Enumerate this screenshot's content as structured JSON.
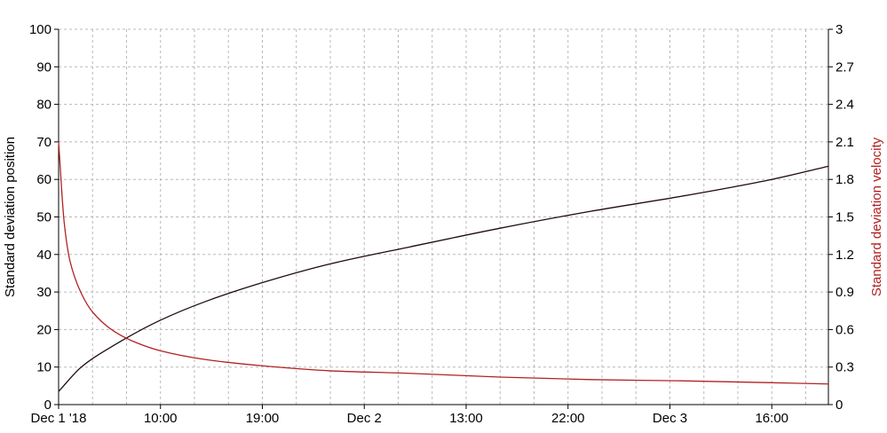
{
  "colors": {
    "position_series": "#1f0a14",
    "velocity_series": "#b22222",
    "velocity_axis_title": "#b22222",
    "grid": "#b8b8b8",
    "axis": "#000000"
  },
  "chart_data": {
    "type": "line",
    "title": "",
    "xlabel": "",
    "ylabel": "Standard deviation position",
    "y2label": "Standard deviation velocity",
    "grid": true,
    "legend": "none",
    "ylim": [
      0,
      100
    ],
    "y2lim": [
      0,
      3
    ],
    "xlim": [
      "2018-12-01T01:00",
      "2018-12-03T21:00"
    ],
    "x_tick_labels": [
      "Dec 1 '18",
      "10:00",
      "19:00",
      "Dec 2",
      "13:00",
      "22:00",
      "Dec 3",
      "16:00"
    ],
    "y_tick_labels": [
      "0",
      "10",
      "20",
      "30",
      "40",
      "50",
      "60",
      "70",
      "80",
      "90",
      "100"
    ],
    "y2_tick_labels": [
      "0",
      "0.3",
      "0.6",
      "0.9",
      "1.2",
      "1.5",
      "1.8",
      "2.1",
      "2.4",
      "2.7",
      "3"
    ],
    "series": [
      {
        "name": "Standard deviation position",
        "axis": "left",
        "x": [
          "2018-12-01T01:00",
          "2018-12-01T03:00",
          "2018-12-01T06:00",
          "2018-12-01T10:00",
          "2018-12-01T14:00",
          "2018-12-01T19:00",
          "2018-12-02T01:00",
          "2018-12-02T08:00",
          "2018-12-02T16:00",
          "2018-12-03T00:00",
          "2018-12-03T08:00",
          "2018-12-03T16:00",
          "2018-12-03T21:00"
        ],
        "y": [
          3.5,
          10,
          16,
          22.5,
          27.5,
          32.5,
          37.5,
          42,
          47,
          51.5,
          55.5,
          60,
          63.5
        ]
      },
      {
        "name": "Standard deviation velocity",
        "axis": "right",
        "x": [
          "2018-12-01T01:00",
          "2018-12-01T01:30",
          "2018-12-01T02:00",
          "2018-12-01T03:00",
          "2018-12-01T04:00",
          "2018-12-01T06:00",
          "2018-12-01T08:00",
          "2018-12-01T10:00",
          "2018-12-01T14:00",
          "2018-12-01T19:00",
          "2018-12-02T01:00",
          "2018-12-02T08:00",
          "2018-12-02T16:00",
          "2018-12-03T00:00",
          "2018-12-03T08:00",
          "2018-12-03T16:00",
          "2018-12-03T21:00"
        ],
        "y": [
          2.1,
          1.45,
          1.15,
          0.89,
          0.74,
          0.58,
          0.49,
          0.43,
          0.36,
          0.31,
          0.27,
          0.25,
          0.22,
          0.2,
          0.19,
          0.175,
          0.165
        ]
      }
    ]
  }
}
